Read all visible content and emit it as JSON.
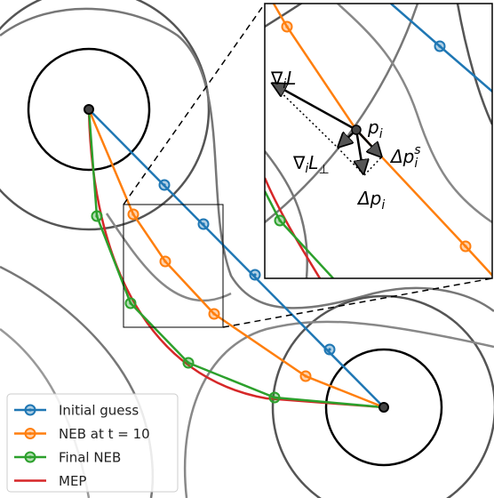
{
  "legend": [
    "Initial guess",
    "NEB at t = 10",
    "Final NEB",
    "MEP"
  ],
  "inset": {
    "labels": {
      "grad": [
        "∇",
        "i",
        "L"
      ],
      "point": [
        "p",
        "i"
      ],
      "grad_perp": [
        "∇",
        "i",
        "L",
        "⊥"
      ],
      "spring": [
        "Δp",
        "i",
        "s"
      ],
      "step": [
        "Δp",
        "i"
      ]
    }
  }
}
